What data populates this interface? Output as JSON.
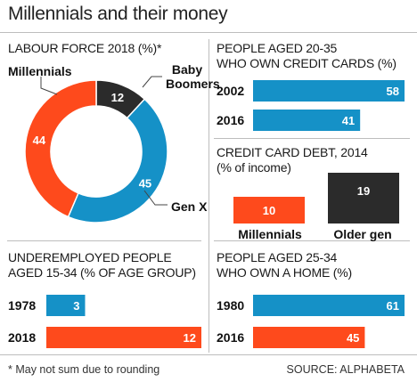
{
  "title": "Millennials and their money",
  "footnote": "* May not sum due to rounding",
  "source": "SOURCE: ALPHABETA",
  "colors": {
    "millennials": "#fe4a1c",
    "genx": "#1591c7",
    "boomers": "#2b2b2b",
    "olders": "#2b2b2b"
  },
  "chart_data": [
    {
      "type": "pie",
      "title": "LABOUR FORCE 2018 (%)*",
      "categories": [
        "Millennials",
        "Gen X",
        "Baby Boomers"
      ],
      "values": [
        44,
        45,
        12
      ]
    },
    {
      "type": "bar",
      "title": "PEOPLE AGED 20-35 WHO OWN CREDIT CARDS (%)",
      "title_lines": [
        "PEOPLE AGED 20-35",
        "WHO OWN CREDIT CARDS (%)"
      ],
      "categories": [
        "2002",
        "2016"
      ],
      "values": [
        58,
        41
      ]
    },
    {
      "type": "bar",
      "title": "CREDIT CARD DEBT, 2014 (% of income)",
      "title_lines": [
        "CREDIT CARD DEBT, 2014",
        "(% of income)"
      ],
      "categories": [
        "Millennials",
        "Older gen"
      ],
      "values": [
        10,
        19
      ]
    },
    {
      "type": "bar",
      "title": "UNDEREMPLOYED PEOPLE AGED 15-34 (% of age group)",
      "title_lines": [
        "UNDEREMPLOYED PEOPLE",
        "AGED 15-34 (% of age group)"
      ],
      "categories": [
        "1978",
        "2018"
      ],
      "values": [
        3,
        12
      ]
    },
    {
      "type": "bar",
      "title": "PEOPLE AGED 25-34 WHO OWN A HOME (%)",
      "title_lines": [
        "PEOPLE AGED 25-34",
        "WHO OWN A HOME (%)"
      ],
      "categories": [
        "1980",
        "2016"
      ],
      "values": [
        61,
        45
      ]
    }
  ]
}
